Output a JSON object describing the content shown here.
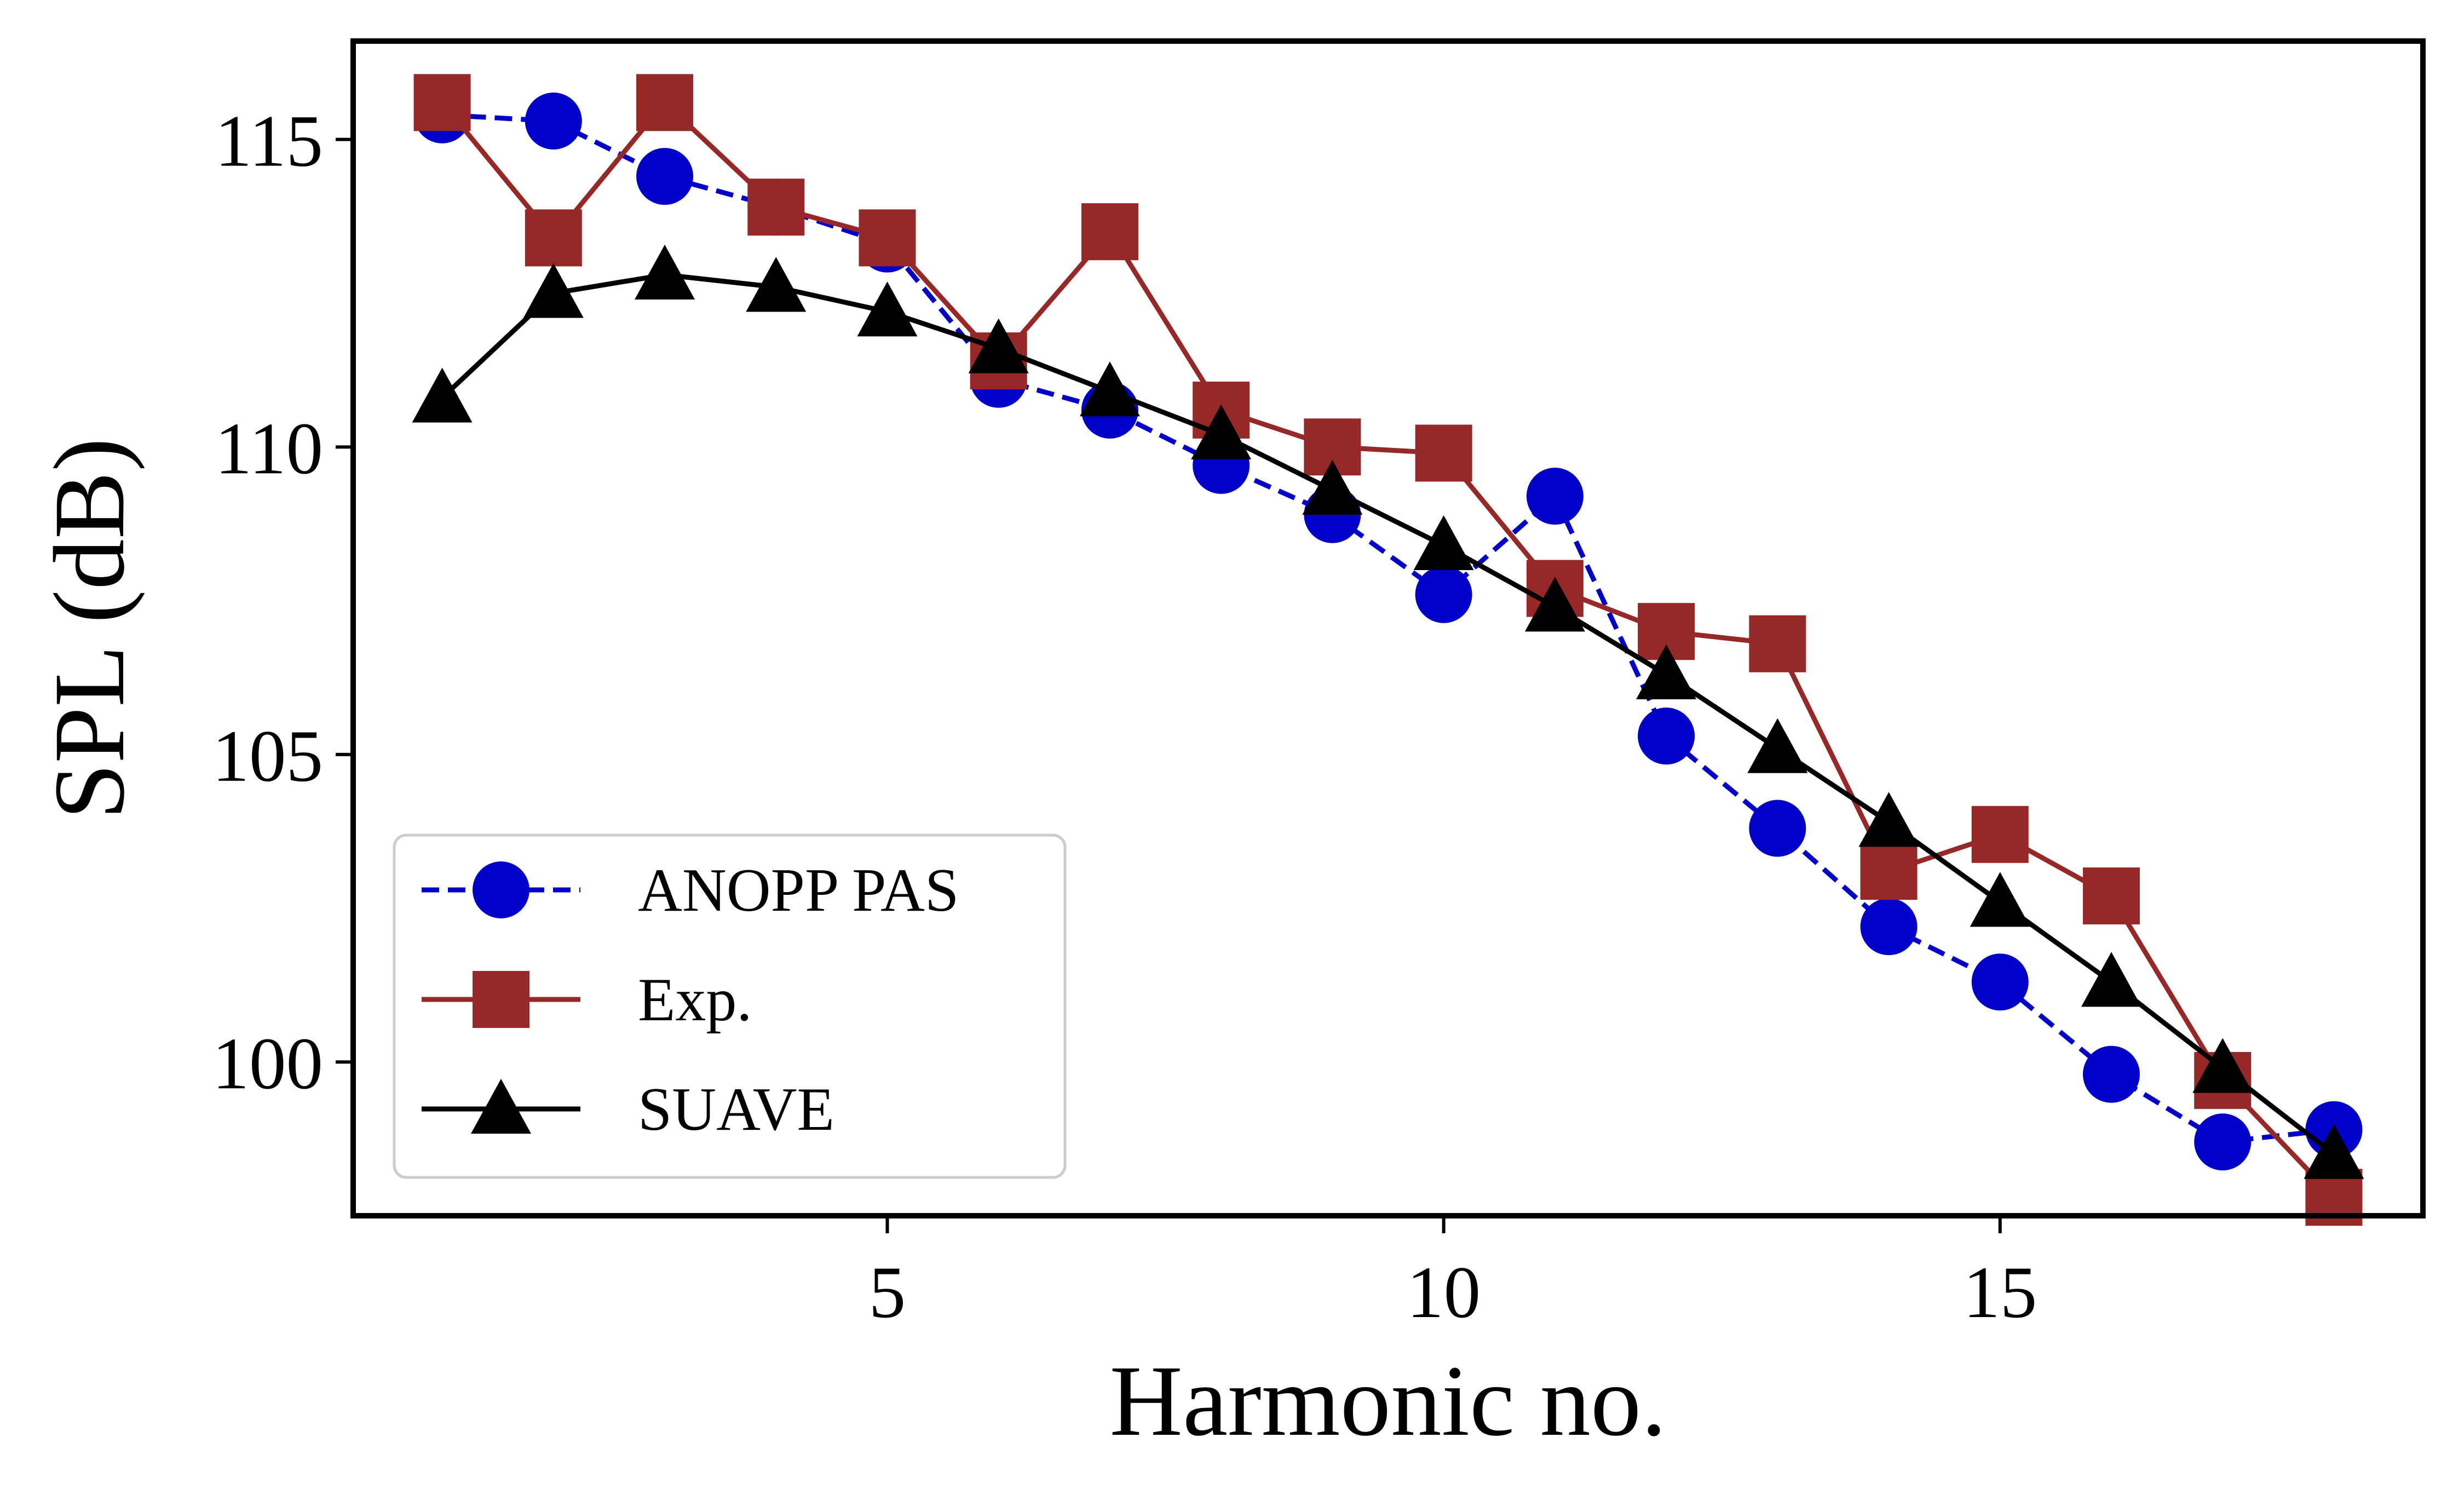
{
  "chart_data": {
    "type": "line",
    "title": "",
    "xlabel": "Harmonic no.",
    "ylabel": "SPL (dB)",
    "xlim": [
      0.2,
      18.8
    ],
    "ylim": [
      97.5,
      116.6
    ],
    "xticks": [
      5,
      10,
      15
    ],
    "yticks": [
      100,
      105,
      110,
      115
    ],
    "grid": false,
    "legend_position": "lower-left",
    "x": [
      1,
      2,
      3,
      4,
      5,
      6,
      7,
      8,
      9,
      10,
      11,
      12,
      13,
      14,
      15,
      16,
      17,
      18
    ],
    "series": [
      {
        "name": "ANOPP PAS",
        "color": "#0000c8",
        "marker": "circle",
        "line_style": "dashed",
        "values": [
          115.4,
          115.3,
          114.4,
          113.9,
          113.3,
          111.1,
          110.6,
          109.7,
          108.9,
          107.6,
          109.2,
          105.3,
          103.8,
          102.2,
          101.3,
          99.8,
          98.7,
          98.9
        ]
      },
      {
        "name": "Exp.",
        "color": "#962828",
        "marker": "square",
        "line_style": "solid",
        "values": [
          115.6,
          113.4,
          115.6,
          113.9,
          113.4,
          111.4,
          113.5,
          110.6,
          110.0,
          109.9,
          107.7,
          107.0,
          106.8,
          103.1,
          103.7,
          102.7,
          99.7,
          97.8
        ]
      },
      {
        "name": "SUAVE",
        "color": "#000000",
        "marker": "triangle",
        "line_style": "solid",
        "values": [
          110.8,
          112.5,
          112.8,
          112.6,
          112.2,
          111.6,
          110.9,
          110.2,
          109.3,
          108.4,
          107.4,
          106.3,
          105.1,
          103.9,
          102.6,
          101.3,
          99.9,
          98.5
        ]
      }
    ]
  }
}
